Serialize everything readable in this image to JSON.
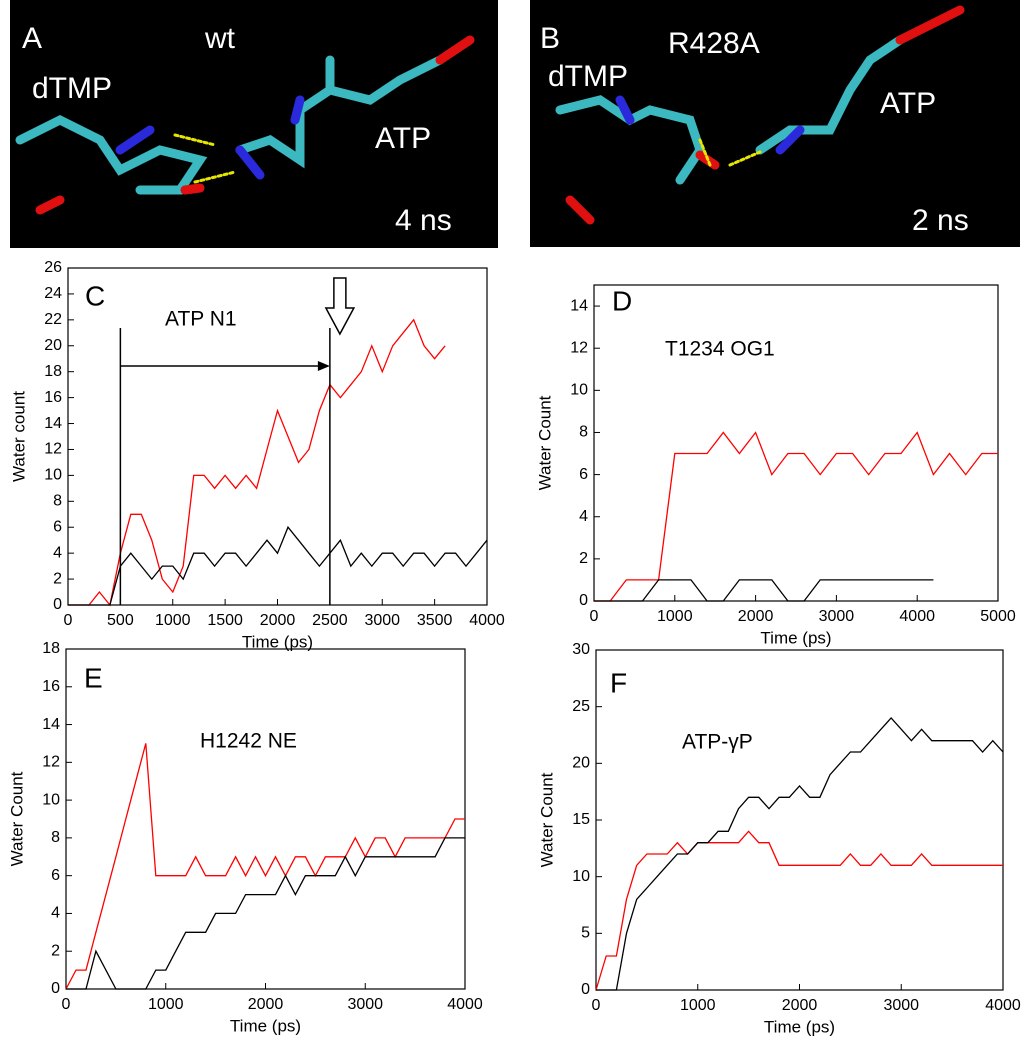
{
  "panels": [
    {
      "label": "A",
      "mutant": "wt",
      "ligand": "dTMP",
      "nucleotide": "ATP",
      "time": "4 ns"
    },
    {
      "label": "B",
      "mutant": "R428A",
      "ligand": "dTMP",
      "nucleotide": "ATP",
      "time": "2 ns"
    }
  ],
  "chart_data": [
    {
      "type": "line",
      "panel_label": "C",
      "annotation": "ATP N1",
      "xlabel": "Time (ps)",
      "ylabel": "Water count",
      "vlines": [
        500,
        2500
      ],
      "x": [
        0,
        100,
        200,
        300,
        400,
        500,
        600,
        700,
        800,
        900,
        1000,
        1100,
        1200,
        1300,
        1400,
        1500,
        1600,
        1700,
        1800,
        1900,
        2000,
        2100,
        2200,
        2300,
        2400,
        2500,
        2600,
        2700,
        2800,
        2900,
        3000,
        3100,
        3200,
        3300,
        3400,
        3500,
        3600,
        3700,
        3800,
        3900,
        4000
      ],
      "series": [
        {
          "color": "#ff0000",
          "values": [
            0,
            0,
            0,
            1,
            0,
            4,
            7,
            7,
            5,
            2,
            1,
            3,
            10,
            10,
            9,
            10,
            9,
            10,
            9,
            12,
            15,
            13,
            11,
            12,
            15,
            17,
            16,
            17,
            18,
            20,
            18,
            20,
            21,
            22,
            20,
            19,
            20,
            null,
            null,
            null,
            null
          ]
        },
        {
          "color": "#000000",
          "values": [
            0,
            0,
            0,
            0,
            0,
            3,
            4,
            3,
            2,
            3,
            3,
            2,
            4,
            4,
            3,
            4,
            4,
            3,
            4,
            5,
            4,
            6,
            5,
            4,
            3,
            4,
            5,
            3,
            4,
            3,
            4,
            4,
            3,
            4,
            4,
            3,
            4,
            4,
            3,
            4,
            5
          ]
        }
      ],
      "xlim": [
        0,
        4000
      ],
      "xticks": [
        0,
        500,
        1000,
        1500,
        2000,
        2500,
        3000,
        3500,
        4000
      ],
      "ylim": [
        0,
        26
      ],
      "yticks": [
        0,
        2,
        4,
        6,
        8,
        10,
        12,
        14,
        16,
        18,
        20,
        22,
        24,
        26
      ]
    },
    {
      "type": "line",
      "panel_label": "D",
      "annotation": "T1234 OG1",
      "xlabel": "Time (ps)",
      "ylabel": "Water Count",
      "x": [
        0,
        200,
        400,
        600,
        800,
        1000,
        1200,
        1400,
        1600,
        1800,
        2000,
        2200,
        2400,
        2600,
        2800,
        3000,
        3200,
        3400,
        3600,
        3800,
        4000,
        4200,
        4400,
        4600,
        4800,
        5000
      ],
      "series": [
        {
          "color": "#ff0000",
          "values": [
            0,
            0,
            1,
            1,
            1,
            7,
            7,
            7,
            8,
            7,
            8,
            6,
            7,
            7,
            6,
            7,
            7,
            6,
            7,
            7,
            8,
            6,
            7,
            6,
            7,
            7
          ]
        },
        {
          "color": "#000000",
          "values": [
            0,
            0,
            0,
            0,
            1,
            1,
            1,
            0,
            0,
            1,
            1,
            1,
            0,
            0,
            1,
            1,
            1,
            1,
            1,
            1,
            1,
            1,
            null,
            null,
            null,
            null
          ]
        }
      ],
      "xlim": [
        0,
        5000
      ],
      "xticks": [
        0,
        1000,
        2000,
        3000,
        4000,
        5000
      ],
      "ylim": [
        0,
        15
      ],
      "yticks": [
        0,
        2,
        4,
        6,
        8,
        10,
        12,
        14
      ]
    },
    {
      "type": "line",
      "panel_label": "E",
      "annotation": "H1242 NE",
      "xlabel": "Time (ps)",
      "ylabel": "Water Count",
      "x": [
        0,
        100,
        200,
        300,
        400,
        500,
        600,
        700,
        800,
        900,
        1000,
        1100,
        1200,
        1300,
        1400,
        1500,
        1600,
        1700,
        1800,
        1900,
        2000,
        2100,
        2200,
        2300,
        2400,
        2500,
        2600,
        2700,
        2800,
        2900,
        3000,
        3100,
        3200,
        3300,
        3400,
        3500,
        3600,
        3700,
        3800,
        3900,
        4000
      ],
      "series": [
        {
          "color": "#ff0000",
          "values": [
            0,
            1,
            1,
            3,
            5,
            7,
            9,
            11,
            13,
            6,
            6,
            6,
            6,
            7,
            6,
            6,
            6,
            7,
            6,
            7,
            6,
            7,
            6,
            7,
            7,
            6,
            7,
            7,
            7,
            8,
            7,
            8,
            8,
            7,
            8,
            8,
            8,
            8,
            8,
            9,
            9
          ]
        },
        {
          "color": "#000000",
          "values": [
            0,
            0,
            0,
            2,
            1,
            0,
            0,
            0,
            0,
            1,
            1,
            2,
            3,
            3,
            3,
            4,
            4,
            4,
            5,
            5,
            5,
            5,
            6,
            5,
            6,
            6,
            6,
            6,
            7,
            6,
            7,
            7,
            7,
            7,
            7,
            7,
            7,
            7,
            8,
            8,
            8
          ]
        }
      ],
      "xlim": [
        0,
        4000
      ],
      "xticks": [
        0,
        1000,
        2000,
        3000,
        4000
      ],
      "ylim": [
        0,
        18
      ],
      "yticks": [
        0,
        2,
        4,
        6,
        8,
        10,
        12,
        14,
        16,
        18
      ]
    },
    {
      "type": "line",
      "panel_label": "F",
      "annotation": "ATP-γP",
      "xlabel": "Time (ps)",
      "ylabel": "Water Count",
      "x": [
        0,
        100,
        200,
        300,
        400,
        500,
        600,
        700,
        800,
        900,
        1000,
        1100,
        1200,
        1300,
        1400,
        1500,
        1600,
        1700,
        1800,
        1900,
        2000,
        2100,
        2200,
        2300,
        2400,
        2500,
        2600,
        2700,
        2800,
        2900,
        3000,
        3100,
        3200,
        3300,
        3400,
        3500,
        3600,
        3700,
        3800,
        3900,
        4000
      ],
      "series": [
        {
          "color": "#ff0000",
          "values": [
            0,
            3,
            3,
            8,
            11,
            12,
            12,
            12,
            13,
            12,
            13,
            13,
            13,
            13,
            13,
            14,
            13,
            13,
            11,
            11,
            11,
            11,
            11,
            11,
            11,
            12,
            11,
            11,
            12,
            11,
            11,
            11,
            12,
            11,
            11,
            11,
            11,
            11,
            11,
            11,
            11
          ]
        },
        {
          "color": "#000000",
          "values": [
            0,
            0,
            0,
            5,
            8,
            9,
            10,
            11,
            12,
            12,
            13,
            13,
            14,
            14,
            16,
            17,
            17,
            16,
            17,
            17,
            18,
            17,
            17,
            19,
            20,
            21,
            21,
            22,
            23,
            24,
            23,
            22,
            23,
            22,
            22,
            22,
            22,
            22,
            21,
            22,
            21
          ]
        }
      ],
      "xlim": [
        0,
        4000
      ],
      "xticks": [
        0,
        1000,
        2000,
        3000,
        4000
      ],
      "ylim": [
        0,
        30
      ],
      "yticks": [
        0,
        5,
        10,
        15,
        20,
        25,
        30
      ]
    }
  ]
}
